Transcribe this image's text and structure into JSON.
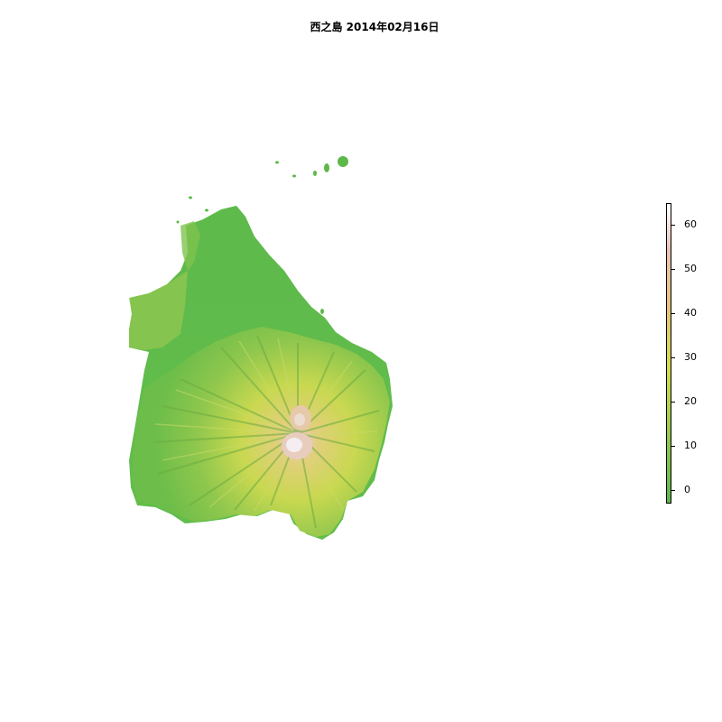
{
  "title": "西之島 2014年02月16日",
  "legend": {
    "ticks": [
      0,
      10,
      20,
      30,
      40,
      50,
      60
    ],
    "min": -3,
    "max": 65,
    "colors": {
      "low": "#5cb848",
      "mid_low": "#8fc84e",
      "mid": "#d6dd4c",
      "mid_high": "#e6c478",
      "high": "#ecc4b6",
      "top": "#ffffff"
    }
  }
}
